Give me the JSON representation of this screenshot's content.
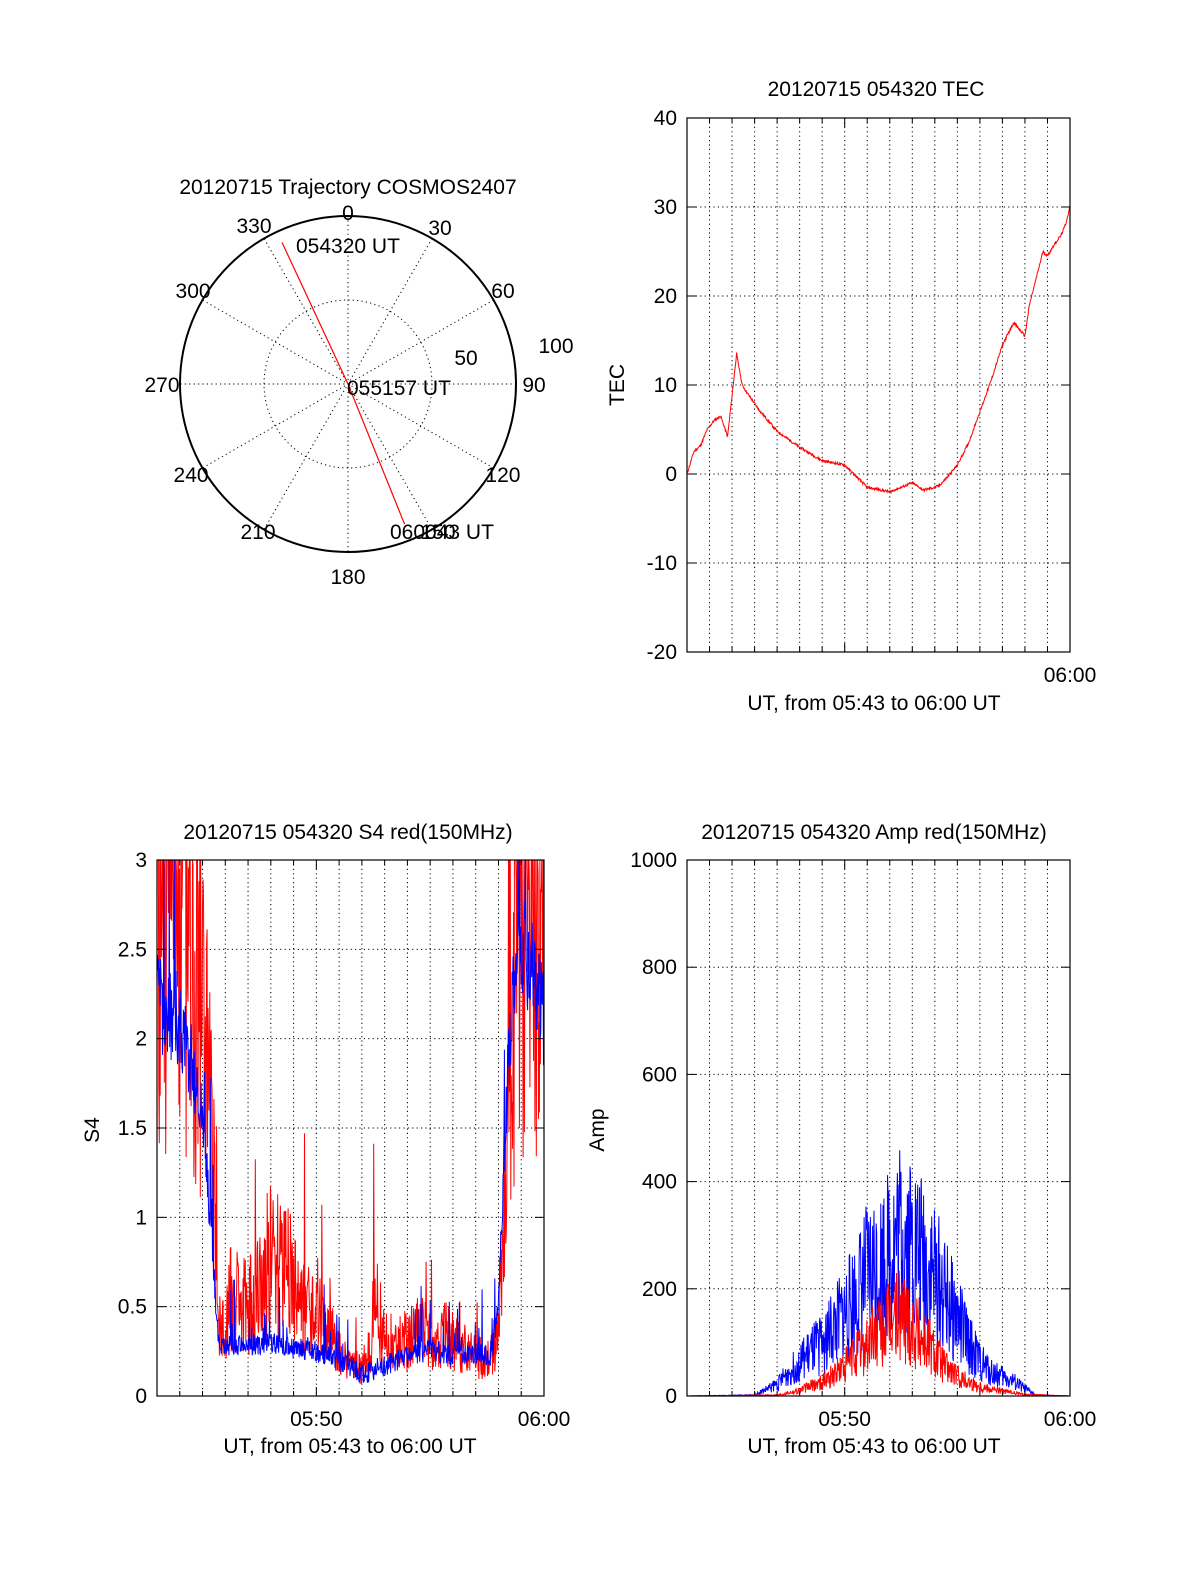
{
  "chart_data": [
    {
      "type": "polar",
      "id": "trajectory",
      "title": "20120715 Trajectory COSMOS2407",
      "azimuth_labels": [
        "0",
        "30",
        "60",
        "90",
        "120",
        "150",
        "180",
        "210",
        "240",
        "270",
        "300",
        "330"
      ],
      "azimuth_values": [
        0,
        30,
        60,
        90,
        120,
        150,
        180,
        210,
        240,
        270,
        300,
        330
      ],
      "radial_labels": [
        "50",
        "100"
      ],
      "radial_values": [
        50,
        100
      ],
      "elevation_max": 100,
      "track": {
        "color": "#ff0000",
        "points": [
          {
            "az": 335,
            "r": 93,
            "label": "054320 UT"
          },
          {
            "az": 0,
            "r": 0,
            "label": "055157 UT"
          },
          {
            "az": 158,
            "r": 90,
            "label": "060043 UT"
          }
        ]
      }
    },
    {
      "type": "line",
      "id": "tec",
      "title": "20120715 054320 TEC",
      "xlabel": "UT, from 05:43 to 06:00 UT",
      "ylabel": "TEC",
      "xlim": [
        5.7222,
        6.0
      ],
      "ylim": [
        -20,
        40
      ],
      "yticks": [
        -20,
        -10,
        0,
        10,
        20,
        30,
        40
      ],
      "yticklabels": [
        "-20",
        "-10",
        "0",
        "10",
        "20",
        "30",
        "40"
      ],
      "xticks": [
        6.0
      ],
      "xticklabels": [
        "06:00"
      ],
      "series": [
        {
          "name": "TEC",
          "color": "#ff0000",
          "x_minutes": [
            43,
            43.3,
            43.6,
            43.9,
            44.2,
            44.5,
            44.8,
            45.05,
            45.2,
            45.45,
            45.7,
            46.2,
            47,
            48,
            49,
            50,
            51,
            52,
            52.5,
            53,
            53.5,
            54,
            54.2,
            54.5,
            55,
            55.5,
            56,
            56.5,
            57,
            57.5,
            58,
            58.2,
            58.5,
            58.8,
            59,
            59.3,
            59.6,
            59.8,
            60
          ],
          "values": [
            0,
            2.5,
            3.2,
            5,
            6,
            6.5,
            4.2,
            10,
            13.5,
            10,
            9,
            7.2,
            4.8,
            3,
            1.5,
            1,
            -1.5,
            -2,
            -1.5,
            -1,
            -1.8,
            -1.5,
            -1.3,
            -0.5,
            1,
            3.5,
            7,
            10.5,
            14.5,
            17,
            15.5,
            19,
            22,
            25,
            24.5,
            25.8,
            26.8,
            28,
            30
          ]
        }
      ]
    },
    {
      "type": "line",
      "id": "s4",
      "title": "20120715 054320 S4 red(150MHz)",
      "xlabel": "UT, from 05:43 to 06:00 UT",
      "ylabel": "S4",
      "xlim": [
        5.7222,
        6.0
      ],
      "ylim": [
        0,
        3
      ],
      "yticks": [
        0,
        0.5,
        1,
        1.5,
        2,
        2.5,
        3
      ],
      "yticklabels": [
        "0",
        "0.5",
        "1",
        "1.5",
        "2",
        "2.5",
        "3"
      ],
      "xticks": [
        5.8333,
        6.0
      ],
      "xticklabels": [
        "05:50",
        "06:00"
      ],
      "series": [
        {
          "name": "red (150MHz)",
          "color": "#ff0000",
          "x_minutes": [
            43,
            44,
            45,
            45.8,
            46.2,
            47,
            47.6,
            48,
            48.4,
            48.8,
            49.2,
            50,
            50.6,
            51.2,
            52,
            52.4,
            52.6,
            53,
            53.6,
            54,
            54.6,
            55,
            55.6,
            56,
            56.6,
            57,
            57.6,
            58,
            58.4,
            58.9,
            59.5,
            60
          ],
          "values": [
            3,
            3,
            2.4,
            0.3,
            0.55,
            0.5,
            0.62,
            0.82,
            0.7,
            0.75,
            0.5,
            0.45,
            0.35,
            0.2,
            0.15,
            0.3,
            0.55,
            0.3,
            0.3,
            0.3,
            0.4,
            0.3,
            0.35,
            0.3,
            0.25,
            0.22,
            0.2,
            0.35,
            1.1,
            3,
            3,
            3
          ]
        },
        {
          "name": "blue",
          "color": "#0000ff",
          "x_minutes": [
            43,
            44,
            45,
            45.7,
            46,
            47,
            48,
            49,
            50,
            51,
            52,
            53,
            54,
            55,
            56,
            57,
            57.7,
            58,
            58.4,
            58.9,
            59.5,
            60
          ],
          "values": [
            2.2,
            2.1,
            1.6,
            0.3,
            0.28,
            0.28,
            0.3,
            0.27,
            0.25,
            0.2,
            0.12,
            0.17,
            0.22,
            0.26,
            0.22,
            0.24,
            0.22,
            0.5,
            1.8,
            2.6,
            2.4,
            2.1
          ]
        }
      ]
    },
    {
      "type": "line",
      "id": "amp",
      "title": "20120715 054320 Amp red(150MHz)",
      "xlabel": "UT, from 05:43 to 06:00 UT",
      "ylabel": "Amp",
      "xlim": [
        5.7222,
        6.0
      ],
      "ylim": [
        0,
        1000
      ],
      "yticks": [
        0,
        200,
        400,
        600,
        800,
        1000
      ],
      "yticklabels": [
        "0",
        "200",
        "400",
        "600",
        "800",
        "1000"
      ],
      "xticks": [
        5.8333,
        6.0
      ],
      "xticklabels": [
        "05:50",
        "06:00"
      ],
      "series": [
        {
          "name": "blue",
          "color": "#0000ff",
          "x_minutes": [
            43,
            46,
            47,
            48,
            49,
            50,
            50.5,
            51,
            51.5,
            52,
            52.5,
            53,
            53.5,
            54,
            54.5,
            55,
            55.5,
            56,
            56.5,
            57,
            57.5,
            58,
            58.5,
            60
          ],
          "values": [
            0,
            2,
            25,
            70,
            110,
            170,
            210,
            250,
            270,
            300,
            340,
            320,
            280,
            250,
            200,
            160,
            110,
            70,
            50,
            40,
            30,
            15,
            2,
            0
          ]
        },
        {
          "name": "red (150MHz)",
          "color": "#ff0000",
          "x_minutes": [
            43,
            47,
            48,
            49,
            50,
            50.5,
            51,
            51.5,
            52,
            52.5,
            53,
            53.5,
            54,
            54.5,
            55,
            56,
            57,
            58,
            60
          ],
          "values": [
            0,
            2,
            12,
            30,
            60,
            85,
            110,
            130,
            150,
            170,
            150,
            120,
            90,
            60,
            40,
            20,
            10,
            3,
            0
          ]
        }
      ]
    }
  ]
}
